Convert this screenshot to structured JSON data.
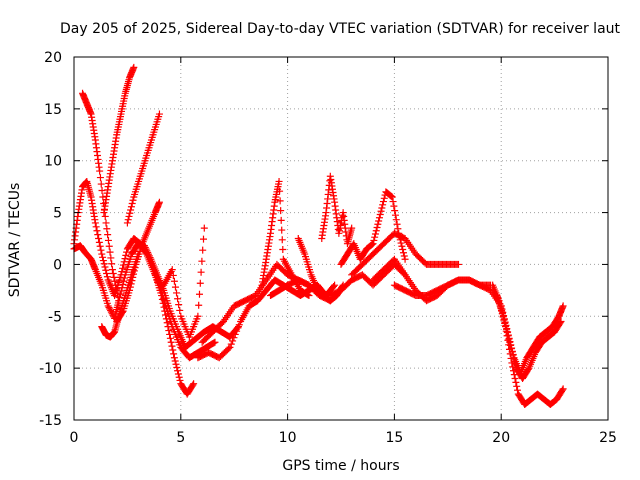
{
  "chart_data": {
    "type": "scatter",
    "title": "Day 205 of 2025, Sidereal Day-to-day VTEC variation (SDTVAR) for receiver laut",
    "xlabel": "GPS time / hours",
    "ylabel": "SDTVAR / TECUs",
    "xlim": [
      0,
      25
    ],
    "ylim": [
      -15,
      20
    ],
    "xticks": [
      0,
      5,
      10,
      15,
      20,
      25
    ],
    "yticks": [
      -15,
      -10,
      -5,
      0,
      5,
      10,
      15,
      20
    ],
    "grid": true,
    "marker": "+",
    "color": "#ff0000",
    "series": [
      {
        "name": "track-1",
        "x": [
          0.0,
          0.3,
          0.5,
          0.8,
          1.0,
          1.3,
          1.6,
          1.9,
          2.1,
          2.4,
          2.7,
          3.0,
          3.3,
          3.6,
          3.9,
          4.2,
          4.5,
          4.9,
          5.2,
          5.5,
          5.8,
          6.1,
          6.5,
          6.9,
          7.3,
          7.7
        ],
        "y": [
          1.5,
          1.8,
          1.2,
          0.5,
          -0.5,
          -2.0,
          -4.0,
          -5.2,
          -3.5,
          -1.0,
          1.0,
          2.0,
          1.8,
          0.5,
          -1.0,
          -2.5,
          -4.5,
          -6.5,
          -8.0,
          -7.5,
          -7.0,
          -6.5,
          -6.0,
          -6.5,
          -7.0,
          -6.0
        ]
      },
      {
        "name": "track-2",
        "x": [
          0.0,
          0.2,
          0.4,
          0.6,
          0.8,
          1.0,
          1.3,
          1.6,
          1.9,
          2.2,
          2.5,
          2.8,
          3.1,
          3.4,
          3.7,
          4.0,
          4.3,
          4.6,
          5.0,
          5.4,
          5.8,
          6.2,
          6.6
        ],
        "y": [
          2.0,
          5.0,
          7.5,
          8.0,
          6.5,
          4.0,
          1.0,
          -1.5,
          -3.0,
          -1.0,
          1.5,
          2.5,
          2.0,
          1.0,
          -0.5,
          -2.0,
          -4.0,
          -6.0,
          -8.0,
          -9.0,
          -8.5,
          -8.0,
          -7.5
        ]
      },
      {
        "name": "track-3",
        "x": [
          0.4,
          0.6,
          0.8,
          1.0,
          1.2,
          1.5,
          1.8,
          2.1
        ],
        "y": [
          16.5,
          15.5,
          14.5,
          12.0,
          9.0,
          4.0,
          -0.5,
          -3.5
        ]
      },
      {
        "name": "track-4",
        "x": [
          2.0,
          2.3,
          2.6,
          2.9,
          3.2,
          3.5,
          3.8,
          4.0
        ],
        "y": [
          -5.5,
          -4.5,
          -2.5,
          0.0,
          2.0,
          3.5,
          5.0,
          6.0
        ]
      },
      {
        "name": "track-5",
        "x": [
          1.4,
          1.6,
          1.8,
          2.0,
          2.2,
          2.4,
          2.6,
          2.8
        ],
        "y": [
          5.0,
          7.5,
          10.0,
          12.5,
          14.5,
          16.5,
          18.0,
          19.0
        ]
      },
      {
        "name": "track-6",
        "x": [
          2.5,
          2.8,
          3.1,
          3.4,
          3.7,
          4.0
        ],
        "y": [
          4.0,
          6.5,
          8.5,
          10.5,
          12.5,
          14.5
        ]
      },
      {
        "name": "track-7",
        "x": [
          1.3,
          1.5,
          1.7,
          1.9,
          2.1,
          2.4,
          2.7,
          3.0
        ],
        "y": [
          -6.0,
          -6.8,
          -7.0,
          -6.5,
          -5.0,
          -3.0,
          -1.0,
          1.0
        ]
      },
      {
        "name": "track-8",
        "x": [
          3.8,
          4.1,
          4.4,
          4.7,
          5.0,
          5.3,
          5.6
        ],
        "y": [
          -1.0,
          -3.0,
          -6.0,
          -9.0,
          -11.5,
          -12.5,
          -11.5
        ]
      },
      {
        "name": "track-9",
        "x": [
          4.2,
          4.6,
          5.0,
          5.4,
          5.8,
          6.1
        ],
        "y": [
          -2.0,
          -0.5,
          -5.0,
          -7.0,
          -5.0,
          3.5
        ]
      },
      {
        "name": "track-10",
        "x": [
          5.8,
          6.3,
          6.8,
          7.3,
          7.8,
          8.2,
          8.6,
          9.0,
          9.4,
          9.8,
          10.2,
          10.6,
          11.0,
          11.4,
          11.8,
          12.2
        ],
        "y": [
          -9.0,
          -8.5,
          -9.0,
          -8.0,
          -5.5,
          -4.0,
          -3.5,
          -2.5,
          -1.5,
          -2.0,
          -2.5,
          -3.0,
          -2.5,
          -2.0,
          -3.0,
          -2.0
        ]
      },
      {
        "name": "track-11",
        "x": [
          6.0,
          6.5,
          7.0,
          7.5,
          8.0,
          8.5,
          9.0,
          9.5,
          10.0,
          10.5,
          11.0,
          11.5,
          12.0
        ],
        "y": [
          -7.5,
          -6.5,
          -5.5,
          -4.0,
          -3.5,
          -3.0,
          -1.5,
          0.0,
          -1.0,
          -1.5,
          -2.0,
          -3.0,
          -3.5
        ]
      },
      {
        "name": "track-12",
        "x": [
          8.8,
          9.0,
          9.2,
          9.4,
          9.6,
          9.8,
          10.2,
          10.6,
          11.0
        ],
        "y": [
          -2.0,
          0.5,
          3.0,
          6.0,
          8.0,
          0.5,
          -1.0,
          -2.5,
          -3.0
        ]
      },
      {
        "name": "track-13",
        "x": [
          9.2,
          9.6,
          10.0,
          10.5,
          11.0,
          11.5,
          12.0,
          12.5,
          13.0,
          13.5,
          14.0,
          14.5,
          15.0,
          15.5
        ],
        "y": [
          -3.0,
          -2.5,
          -2.0,
          -1.5,
          -2.0,
          -3.0,
          -3.0,
          -2.5,
          -1.5,
          -1.0,
          -2.0,
          -1.0,
          0.0,
          -1.0
        ]
      },
      {
        "name": "track-14",
        "x": [
          10.5,
          10.8,
          11.1,
          11.4,
          11.7,
          12.0,
          12.3,
          12.6
        ],
        "y": [
          2.5,
          1.0,
          -1.0,
          -2.5,
          -3.0,
          -3.5,
          -3.0,
          -2.0
        ]
      },
      {
        "name": "track-15",
        "x": [
          11.6,
          11.8,
          12.0,
          12.2,
          12.4,
          12.6,
          12.8,
          13.0
        ],
        "y": [
          2.5,
          5.0,
          8.5,
          6.0,
          3.0,
          5.0,
          2.0,
          3.5
        ]
      },
      {
        "name": "track-16",
        "x": [
          12.5,
          12.8,
          13.1,
          13.4,
          13.7,
          14.0,
          14.3,
          14.6,
          14.9,
          15.2,
          15.5
        ],
        "y": [
          0.0,
          1.0,
          2.0,
          0.5,
          1.5,
          2.0,
          4.5,
          7.0,
          6.5,
          3.0,
          0.5
        ]
      },
      {
        "name": "track-17",
        "x": [
          13.0,
          13.5,
          14.0,
          14.5,
          15.0,
          15.5,
          16.0,
          16.5,
          17.0,
          17.5,
          18.0
        ],
        "y": [
          -1.0,
          0.0,
          1.0,
          2.0,
          3.0,
          2.5,
          1.0,
          0.0,
          0.0,
          0.0,
          0.0
        ]
      },
      {
        "name": "track-18",
        "x": [
          14.0,
          14.5,
          15.0,
          15.5,
          16.0,
          16.5,
          17.0,
          17.5,
          18.0,
          18.5,
          19.0,
          19.5
        ],
        "y": [
          -1.5,
          -0.5,
          0.5,
          -1.0,
          -2.5,
          -3.5,
          -3.0,
          -2.0,
          -1.5,
          -1.5,
          -2.0,
          -2.0
        ]
      },
      {
        "name": "track-19",
        "x": [
          15.0,
          15.5,
          16.0,
          16.5,
          17.0,
          17.5,
          18.0,
          18.5,
          19.0,
          19.5,
          20.0
        ],
        "y": [
          -2.0,
          -2.5,
          -3.0,
          -3.0,
          -2.5,
          -2.0,
          -1.5,
          -1.5,
          -2.0,
          -2.5,
          -4.0
        ]
      },
      {
        "name": "track-20",
        "x": [
          19.6,
          19.9,
          20.2,
          20.5,
          20.8,
          21.1,
          21.4,
          21.7,
          22.0,
          22.3,
          22.6,
          22.9
        ],
        "y": [
          -2.0,
          -3.5,
          -6.0,
          -9.5,
          -12.5,
          -13.5,
          -13.0,
          -12.5,
          -13.0,
          -13.5,
          -13.0,
          -12.0
        ]
      },
      {
        "name": "track-21",
        "x": [
          19.8,
          20.1,
          20.4,
          20.7,
          21.0,
          21.3,
          21.6,
          21.9,
          22.2,
          22.5,
          22.8
        ],
        "y": [
          -3.0,
          -5.0,
          -7.5,
          -10.0,
          -11.0,
          -10.0,
          -8.5,
          -7.5,
          -7.0,
          -6.5,
          -5.5
        ]
      },
      {
        "name": "track-22",
        "x": [
          20.0,
          20.3,
          20.6,
          20.9,
          21.2,
          21.5,
          21.8,
          22.1,
          22.4,
          22.7,
          22.9
        ],
        "y": [
          -4.0,
          -6.5,
          -9.0,
          -10.5,
          -9.0,
          -8.0,
          -7.0,
          -6.5,
          -6.0,
          -5.0,
          -4.0
        ]
      }
    ]
  }
}
